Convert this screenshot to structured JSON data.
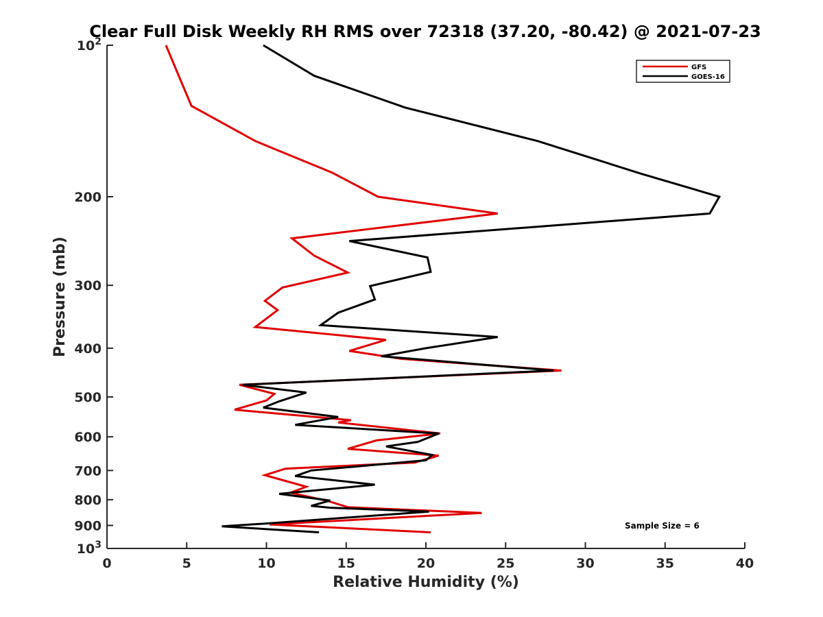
{
  "chart_data": {
    "type": "line",
    "title": "Clear Full Disk Weekly RH RMS over 72318 (37.20, -80.42) @ 2021-07-23",
    "xlabel": "Relative Humidity (%)",
    "ylabel": "Pressure (mb)",
    "xlim": [
      0,
      40
    ],
    "ylim": [
      100,
      1000
    ],
    "y_scale": "log",
    "y_reversed": true,
    "x_ticks": [
      0,
      5,
      10,
      15,
      20,
      25,
      30,
      35,
      40
    ],
    "x_tick_labels": [
      "0",
      "5",
      "10",
      "15",
      "20",
      "25",
      "30",
      "35",
      "40"
    ],
    "y_ticks": [
      100,
      200,
      300,
      400,
      500,
      600,
      700,
      800,
      900,
      1000
    ],
    "y_tick_labels": [
      {
        "base": "10",
        "exp": "2"
      },
      {
        "base": "200",
        "exp": ""
      },
      {
        "base": "300",
        "exp": ""
      },
      {
        "base": "400",
        "exp": ""
      },
      {
        "base": "500",
        "exp": ""
      },
      {
        "base": "600",
        "exp": ""
      },
      {
        "base": "700",
        "exp": ""
      },
      {
        "base": "800",
        "exp": ""
      },
      {
        "base": "900",
        "exp": ""
      },
      {
        "base": "10",
        "exp": "3"
      }
    ],
    "grid": false,
    "legend_position": "top-right",
    "annotation": "Sample Size = 6",
    "series": [
      {
        "name": "GFS",
        "color": "#e00000",
        "points": [
          [
            3.7,
            100
          ],
          [
            4.5,
            115
          ],
          [
            5.3,
            132
          ],
          [
            9.3,
            155
          ],
          [
            14.1,
            179
          ],
          [
            17.0,
            200
          ],
          [
            24.5,
            216
          ],
          [
            11.6,
            242
          ],
          [
            13.0,
            262
          ],
          [
            15.1,
            283
          ],
          [
            11.0,
            303
          ],
          [
            9.9,
            322
          ],
          [
            10.7,
            336
          ],
          [
            9.3,
            363
          ],
          [
            17.5,
            385
          ],
          [
            15.2,
            405
          ],
          [
            18.5,
            420
          ],
          [
            28.5,
            443
          ],
          [
            8.3,
            473
          ],
          [
            10.5,
            493
          ],
          [
            10.0,
            508
          ],
          [
            8.0,
            530
          ],
          [
            15.3,
            556
          ],
          [
            14.5,
            562
          ],
          [
            20.9,
            591
          ],
          [
            16.9,
            610
          ],
          [
            15.1,
            634
          ],
          [
            20.8,
            654
          ],
          [
            19.3,
            675
          ],
          [
            11.2,
            694
          ],
          [
            9.9,
            715
          ],
          [
            12.5,
            754
          ],
          [
            11.5,
            775
          ],
          [
            13.8,
            804
          ],
          [
            15.1,
            828
          ],
          [
            23.5,
            850
          ],
          [
            10.2,
            896
          ],
          [
            20.3,
            929
          ]
        ]
      },
      {
        "name": "GOES-16",
        "color": "#000000",
        "points": [
          [
            9.8,
            100
          ],
          [
            13.0,
            115
          ],
          [
            18.7,
            133
          ],
          [
            27.0,
            155
          ],
          [
            33.5,
            180
          ],
          [
            38.4,
            200
          ],
          [
            37.8,
            216
          ],
          [
            15.2,
            245
          ],
          [
            20.1,
            264
          ],
          [
            20.3,
            282
          ],
          [
            16.5,
            301
          ],
          [
            16.8,
            320
          ],
          [
            14.5,
            340
          ],
          [
            13.4,
            360
          ],
          [
            24.5,
            380
          ],
          [
            20.0,
            400
          ],
          [
            17.2,
            415
          ],
          [
            28.0,
            443
          ],
          [
            8.5,
            473
          ],
          [
            12.5,
            490
          ],
          [
            10.8,
            510
          ],
          [
            9.8,
            525
          ],
          [
            14.5,
            548
          ],
          [
            11.8,
            568
          ],
          [
            20.8,
            591
          ],
          [
            19.5,
            614
          ],
          [
            17.5,
            627
          ],
          [
            20.4,
            652
          ],
          [
            20.0,
            668
          ],
          [
            12.8,
            700
          ],
          [
            11.8,
            718
          ],
          [
            16.8,
            747
          ],
          [
            10.8,
            779
          ],
          [
            14.0,
            803
          ],
          [
            12.8,
            823
          ],
          [
            14.0,
            830
          ],
          [
            20.2,
            845
          ],
          [
            10.0,
            892
          ],
          [
            7.2,
            904
          ],
          [
            13.3,
            929
          ]
        ]
      }
    ]
  }
}
